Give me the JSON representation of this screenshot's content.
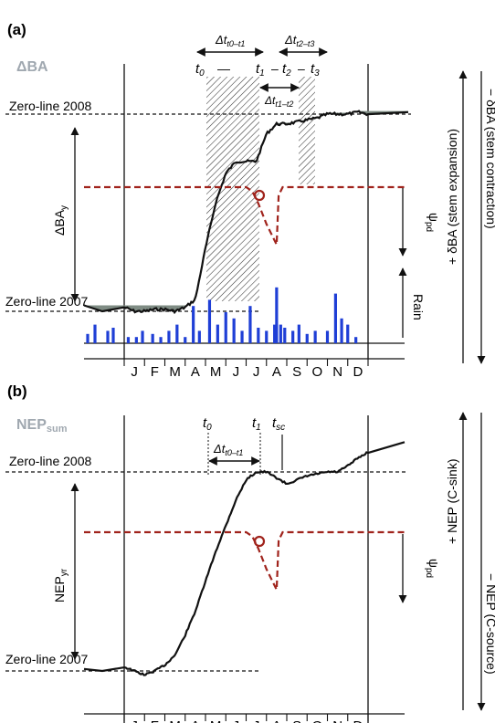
{
  "chart_data": [
    {
      "panel": "(a)",
      "type": "line",
      "title": "ΔBA",
      "months": [
        "J",
        "F",
        "M",
        "A",
        "M",
        "J",
        "J",
        "A",
        "S",
        "O",
        "N",
        "D"
      ],
      "series": [
        {
          "name": "ΔBA",
          "role": "stem basal area increment (cumulative)",
          "x": [
            0.0,
            0.5,
            1.0,
            1.5,
            2.0,
            2.5,
            3.0,
            3.5,
            4.0,
            4.5,
            5.0,
            5.5,
            6.0,
            6.5,
            7.0,
            7.5,
            8.0,
            8.5,
            9.0,
            9.5,
            10.0,
            10.5,
            11.0,
            11.5,
            12.0
          ],
          "y": [
            0.02,
            0.0,
            0.0,
            0.01,
            0.01,
            0.0,
            0.02,
            0.06,
            0.32,
            0.55,
            0.7,
            0.76,
            0.76,
            0.76,
            0.9,
            0.95,
            0.95,
            0.96,
            0.97,
            0.98,
            1.0,
            1.0,
            1.0,
            1.01,
            1.0
          ]
        },
        {
          "name": "ψpd",
          "role": "predawn water potential",
          "x": [
            0,
            1,
            2,
            3,
            4,
            5,
            6,
            6.3,
            6.6,
            7.0,
            7.5,
            7.6,
            7.8,
            8,
            9,
            10,
            11,
            12
          ],
          "y": [
            0,
            0,
            0,
            0,
            0,
            0,
            0,
            -0.05,
            -0.2,
            -0.45,
            -0.7,
            -0.1,
            0,
            0,
            0,
            0,
            0,
            0
          ]
        },
        {
          "name": "Rain",
          "x": [
            0.2,
            0.6,
            0.9,
            1.4,
            1.8,
            2.2,
            2.6,
            3.0,
            3.4,
            3.7,
            4.2,
            4.6,
            5.0,
            5.4,
            5.8,
            6.2,
            6.6,
            7.0,
            7.4,
            7.5,
            7.7,
            7.9,
            8.3,
            8.6,
            9.0,
            9.4,
            10.0,
            10.4,
            10.7,
            11.0,
            11.4
          ],
          "y": [
            0.1,
            0.1,
            0.2,
            0.15,
            0.1,
            0.2,
            0.3,
            0.1,
            0.6,
            0.2,
            0.7,
            0.3,
            0.5,
            0.4,
            0.2,
            0.6,
            0.25,
            0.2,
            0.3,
            0.9,
            0.3,
            0.25,
            0.2,
            0.3,
            0.15,
            0.2,
            0.2,
            0.8,
            0.4,
            0.3,
            0.1
          ]
        }
      ]
    },
    {
      "panel": "(b)",
      "type": "line",
      "title": "NEPsum",
      "months": [
        "J",
        "F",
        "M",
        "A",
        "M",
        "J",
        "J",
        "A",
        "S",
        "O",
        "N",
        "D"
      ],
      "series": [
        {
          "name": "NEPsum",
          "role": "cumulative net ecosystem production",
          "x": [
            0.0,
            0.5,
            1.0,
            1.5,
            2.0,
            2.5,
            3.0,
            3.5,
            4.0,
            4.5,
            5.0,
            5.5,
            6.0,
            6.5,
            7.0,
            7.5,
            8.0,
            8.5,
            9.0,
            9.5,
            10.0,
            10.5,
            11.0,
            11.5,
            12.0
          ],
          "y": [
            0.02,
            0.0,
            -0.02,
            0.0,
            0.03,
            0.08,
            0.18,
            0.3,
            0.45,
            0.6,
            0.73,
            0.86,
            0.96,
            1.0,
            1.0,
            0.97,
            0.94,
            0.96,
            0.98,
            0.99,
            1.0,
            1.0,
            1.03,
            1.07,
            1.1
          ]
        },
        {
          "name": "ψpd",
          "role": "predawn water potential",
          "x": [
            0,
            1,
            2,
            3,
            4,
            5,
            6,
            6.3,
            6.6,
            7.0,
            7.5,
            7.6,
            7.8,
            8,
            9,
            10,
            11,
            12
          ],
          "y": [
            0,
            0,
            0,
            0,
            0,
            0,
            0,
            -0.05,
            -0.2,
            -0.45,
            -0.7,
            -0.1,
            0,
            0,
            0,
            0,
            0,
            0
          ]
        }
      ]
    }
  ],
  "labels": {
    "panel_a": "(a)",
    "panel_b": "(b)",
    "dba": "ΔBA",
    "nep_sum": "NEP",
    "nep_sum_sub": "sum",
    "zero_2008": "Zero-line 2008",
    "zero_2007": "Zero-line 2007",
    "dba_y": "ΔBA",
    "dba_y_sub": "y",
    "nep_yr": "NEP",
    "nep_yr_sub": "yr",
    "rain": "Rain",
    "psi_pd": "ψ",
    "psi_pd_sub": "pd",
    "stem_expansion": "+ δBA (stem expansion)",
    "stem_contraction": "− δBA (stem contraction)",
    "nep_sink": "+ NEP (C-sink)",
    "nep_source": "− NEP (C-source)",
    "dt_t0_t1": "Δt",
    "dt_t0_t1_sub": "t0–t1",
    "dt_t2_t3": "Δt",
    "dt_t2_t3_sub": "t2–t3",
    "dt_t1_t2": "Δt",
    "dt_t1_t2_sub": "t1–t2",
    "t0": "t",
    "t0_sub": "0",
    "t1": "t",
    "t1_sub": "1",
    "t2": "t",
    "t2_sub": "2",
    "t3": "t",
    "t3_sub": "3",
    "tsc": "t",
    "tsc_sub": "sc",
    "dash_a": "—",
    "dash_b": "–",
    "dash_c": "–"
  },
  "colors": {
    "water_potential": "#a0231c",
    "rain": "#1f3fd6",
    "title_grey": "#a0a8b0",
    "curve": "#111111"
  }
}
